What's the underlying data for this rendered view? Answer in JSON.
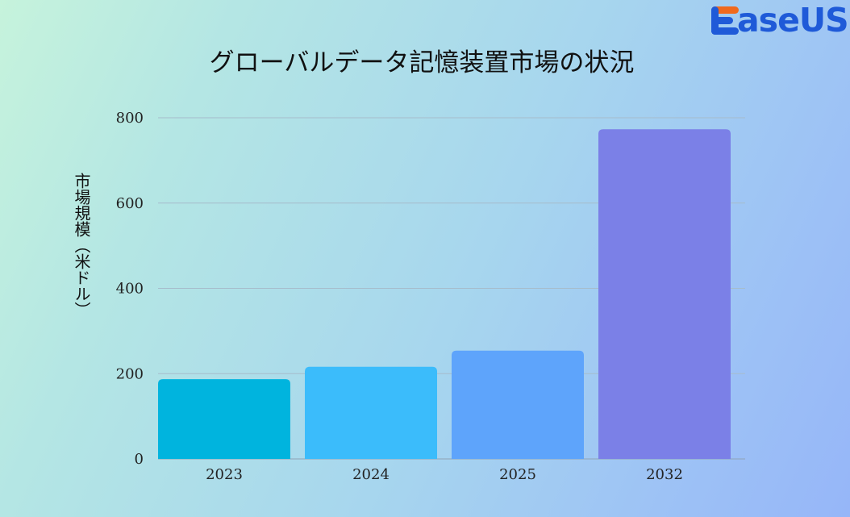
{
  "brand": {
    "logo_text": "aseUS",
    "logo_full": "EaseUS",
    "color": "#1f5ad8",
    "accent": "#f06a1e"
  },
  "chart_data": {
    "type": "bar",
    "title": "グローバルデータ記憶装置市場の状況",
    "xlabel": "",
    "ylabel": "市場規模（米ドル）",
    "categories": [
      "2023",
      "2024",
      "2025",
      "2032"
    ],
    "values": [
      187,
      216,
      254,
      773
    ],
    "bar_colors": [
      "#00b4de",
      "#3bbcfb",
      "#5ea4fb",
      "#7b80e7"
    ],
    "ylim": [
      0,
      800
    ],
    "yticks": [
      "0",
      "200",
      "400",
      "600",
      "800"
    ],
    "grid": true,
    "legend": "none"
  }
}
